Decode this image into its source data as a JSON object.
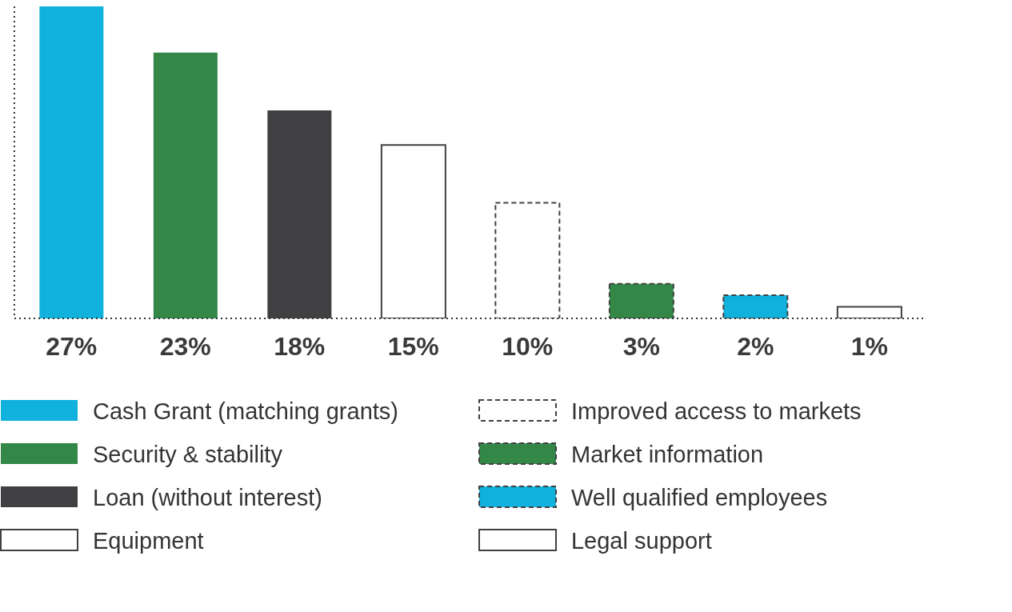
{
  "chart_data": {
    "type": "bar",
    "stacked": true,
    "categories": [
      null,
      null,
      null,
      null,
      null,
      null,
      null,
      null
    ],
    "ylim": [
      0,
      27
    ],
    "legend": "bottom",
    "series": [
      {
        "name": "Cash Grant (matching grants)",
        "color": "#10b1dc",
        "values": [
          27,
          null,
          null,
          null,
          null,
          null,
          null,
          null
        ],
        "value_labels": [
          "27%",
          null,
          null,
          null,
          null,
          null,
          null,
          null
        ]
      },
      {
        "name": "Security & stability",
        "color": "#338747",
        "values": [
          null,
          23,
          null,
          null,
          null,
          null,
          null,
          null
        ],
        "value_labels": [
          null,
          "23%",
          null,
          null,
          null,
          null,
          null,
          null
        ]
      },
      {
        "name": "Loan (without interest)",
        "color": "#404042",
        "values": [
          null,
          null,
          18,
          null,
          null,
          null,
          null,
          null
        ],
        "value_labels": [
          null,
          null,
          "18%",
          null,
          null,
          null,
          null,
          null
        ]
      },
      {
        "name": "Equipment",
        "color": "#ffffff",
        "values": [
          null,
          null,
          null,
          15,
          null,
          null,
          null,
          null
        ],
        "value_labels": [
          null,
          null,
          null,
          "15%",
          null,
          null,
          null,
          null
        ]
      },
      {
        "name": "Improved access to markets",
        "color": "#ffffff",
        "line_style": "dashed",
        "values": [
          null,
          null,
          null,
          null,
          10,
          null,
          null,
          null
        ],
        "value_labels": [
          null,
          null,
          null,
          null,
          "10%",
          null,
          null,
          null
        ]
      },
      {
        "name": "Market information",
        "color": "#338747",
        "line_style": "dashed",
        "values": [
          null,
          null,
          null,
          null,
          null,
          3,
          null,
          null
        ],
        "value_labels": [
          null,
          null,
          null,
          null,
          null,
          "3%",
          null,
          null
        ]
      },
      {
        "name": "Well qualified employees",
        "color": "#10b1dc",
        "line_style": "dashed",
        "values": [
          null,
          null,
          null,
          null,
          null,
          null,
          2,
          null
        ],
        "value_labels": [
          null,
          null,
          null,
          null,
          null,
          null,
          "2%",
          null
        ]
      },
      {
        "name": "Legal support",
        "color": "#ffffff",
        "values": [
          null,
          null,
          null,
          null,
          null,
          null,
          null,
          1
        ],
        "value_labels": [
          null,
          null,
          null,
          null,
          null,
          null,
          null,
          "1%"
        ]
      }
    ]
  }
}
